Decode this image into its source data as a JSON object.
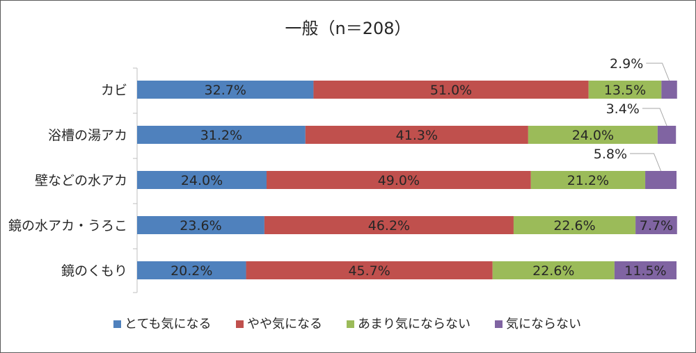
{
  "chart_data": {
    "type": "bar",
    "stacked": true,
    "orientation": "horizontal",
    "percent_stacked": true,
    "title": "一般（n＝208）",
    "xlim": [
      0,
      100
    ],
    "legend_position": "bottom",
    "categories": [
      "カビ",
      "浴槽の湯アカ",
      "壁などの水アカ",
      "鏡の水アカ・うろこ",
      "鏡のくもり"
    ],
    "series": [
      {
        "name": "とても気になる",
        "color": "#4f81bd",
        "values": [
          32.7,
          31.2,
          24.0,
          23.6,
          20.2
        ],
        "labels": [
          "32.7%",
          "31.2%",
          "24.0%",
          "23.6%",
          "20.2%"
        ]
      },
      {
        "name": "やや気になる",
        "color": "#c0504d",
        "values": [
          51.0,
          41.3,
          49.0,
          46.2,
          45.7
        ],
        "labels": [
          "51.0%",
          "41.3%",
          "49.0%",
          "46.2%",
          "45.7%"
        ]
      },
      {
        "name": "あまり気にならない",
        "color": "#9bbb59",
        "values": [
          13.5,
          24.0,
          21.2,
          22.6,
          22.6
        ],
        "labels": [
          "13.5%",
          "24.0%",
          "21.2%",
          "22.6%",
          "22.6%"
        ]
      },
      {
        "name": "気にならない",
        "color": "#8064a2",
        "values": [
          2.9,
          3.4,
          5.8,
          7.7,
          11.5
        ],
        "labels": [
          "2.9%",
          "3.4%",
          "5.8%",
          "7.7%",
          "11.5%"
        ]
      }
    ]
  }
}
